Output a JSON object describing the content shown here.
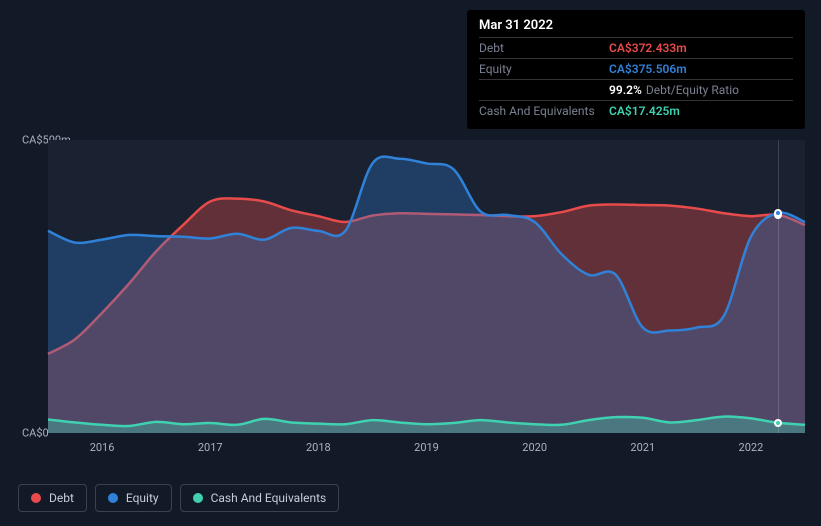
{
  "tooltip": {
    "date": "Mar 31 2022",
    "rows": [
      {
        "label": "Debt",
        "value": "CA$372.433m",
        "color": "#e84b4b"
      },
      {
        "label": "Equity",
        "value": "CA$375.506m",
        "color": "#2f82d8"
      },
      {
        "label": "",
        "value": "99.2%",
        "sub": "Debt/Equity Ratio",
        "color": "#ffffff"
      },
      {
        "label": "Cash And Equivalents",
        "value": "CA$17.425m",
        "color": "#3fd1b0"
      }
    ]
  },
  "chart": {
    "type": "area",
    "background_plot": "#1a2231",
    "background_page": "#131a27",
    "grid_color": "rgba(255,255,255,0.15)",
    "y_min": 0,
    "y_max": 500,
    "y_labels": [
      {
        "v": 500,
        "text": "CA$500m"
      },
      {
        "v": 0,
        "text": "CA$0"
      }
    ],
    "x_min": 2015.5,
    "x_max": 2022.5,
    "x_ticks": [
      2016,
      2017,
      2018,
      2019,
      2020,
      2021,
      2022
    ],
    "hover_x": 2022.25,
    "series": [
      {
        "name": "Debt",
        "color": "#e84b4b",
        "fill_opacity": 0.35,
        "line_width": 2.5,
        "points": [
          [
            2015.5,
            135
          ],
          [
            2015.75,
            160
          ],
          [
            2016,
            205
          ],
          [
            2016.25,
            255
          ],
          [
            2016.5,
            310
          ],
          [
            2016.75,
            355
          ],
          [
            2017,
            395
          ],
          [
            2017.25,
            400
          ],
          [
            2017.5,
            395
          ],
          [
            2017.75,
            380
          ],
          [
            2018,
            370
          ],
          [
            2018.25,
            360
          ],
          [
            2018.5,
            371
          ],
          [
            2018.75,
            375
          ],
          [
            2019,
            374
          ],
          [
            2019.25,
            373
          ],
          [
            2019.5,
            372
          ],
          [
            2019.75,
            370
          ],
          [
            2020,
            370
          ],
          [
            2020.25,
            377
          ],
          [
            2020.5,
            388
          ],
          [
            2020.75,
            390
          ],
          [
            2021,
            389
          ],
          [
            2021.25,
            388
          ],
          [
            2021.5,
            383
          ],
          [
            2021.75,
            375
          ],
          [
            2022,
            370
          ],
          [
            2022.25,
            372.4
          ],
          [
            2022.5,
            355
          ]
        ]
      },
      {
        "name": "Equity",
        "color": "#2f82d8",
        "fill_opacity": 0.3,
        "line_width": 2.5,
        "points": [
          [
            2015.5,
            345
          ],
          [
            2015.75,
            325
          ],
          [
            2016,
            330
          ],
          [
            2016.25,
            338
          ],
          [
            2016.5,
            336
          ],
          [
            2016.75,
            335
          ],
          [
            2017,
            332
          ],
          [
            2017.25,
            340
          ],
          [
            2017.5,
            330
          ],
          [
            2017.75,
            350
          ],
          [
            2018,
            345
          ],
          [
            2018.25,
            345
          ],
          [
            2018.5,
            460
          ],
          [
            2018.75,
            468
          ],
          [
            2019,
            460
          ],
          [
            2019.25,
            450
          ],
          [
            2019.5,
            378
          ],
          [
            2019.75,
            372
          ],
          [
            2020,
            360
          ],
          [
            2020.25,
            305
          ],
          [
            2020.5,
            270
          ],
          [
            2020.75,
            270
          ],
          [
            2021,
            180
          ],
          [
            2021.25,
            175
          ],
          [
            2021.5,
            180
          ],
          [
            2021.75,
            200
          ],
          [
            2022,
            335
          ],
          [
            2022.25,
            375.5
          ],
          [
            2022.5,
            360
          ]
        ]
      },
      {
        "name": "Cash And Equivalents",
        "color": "#3fd1b0",
        "fill_opacity": 0.35,
        "line_width": 2.5,
        "points": [
          [
            2015.5,
            23
          ],
          [
            2015.75,
            18
          ],
          [
            2016,
            14
          ],
          [
            2016.25,
            12
          ],
          [
            2016.5,
            19
          ],
          [
            2016.75,
            15
          ],
          [
            2017,
            17
          ],
          [
            2017.25,
            14
          ],
          [
            2017.5,
            24
          ],
          [
            2017.75,
            18
          ],
          [
            2018,
            16
          ],
          [
            2018.25,
            15
          ],
          [
            2018.5,
            22
          ],
          [
            2018.75,
            18
          ],
          [
            2019,
            15
          ],
          [
            2019.25,
            17
          ],
          [
            2019.5,
            22
          ],
          [
            2019.75,
            18
          ],
          [
            2020,
            15
          ],
          [
            2020.25,
            14
          ],
          [
            2020.5,
            22
          ],
          [
            2020.75,
            27
          ],
          [
            2021,
            26
          ],
          [
            2021.25,
            18
          ],
          [
            2021.5,
            22
          ],
          [
            2021.75,
            28
          ],
          [
            2022,
            25
          ],
          [
            2022.25,
            17.4
          ],
          [
            2022.5,
            14
          ]
        ]
      }
    ],
    "legend": [
      {
        "label": "Debt",
        "color": "#e84b4b"
      },
      {
        "label": "Equity",
        "color": "#2f82d8"
      },
      {
        "label": "Cash And Equivalents",
        "color": "#3fd1b0"
      }
    ]
  }
}
